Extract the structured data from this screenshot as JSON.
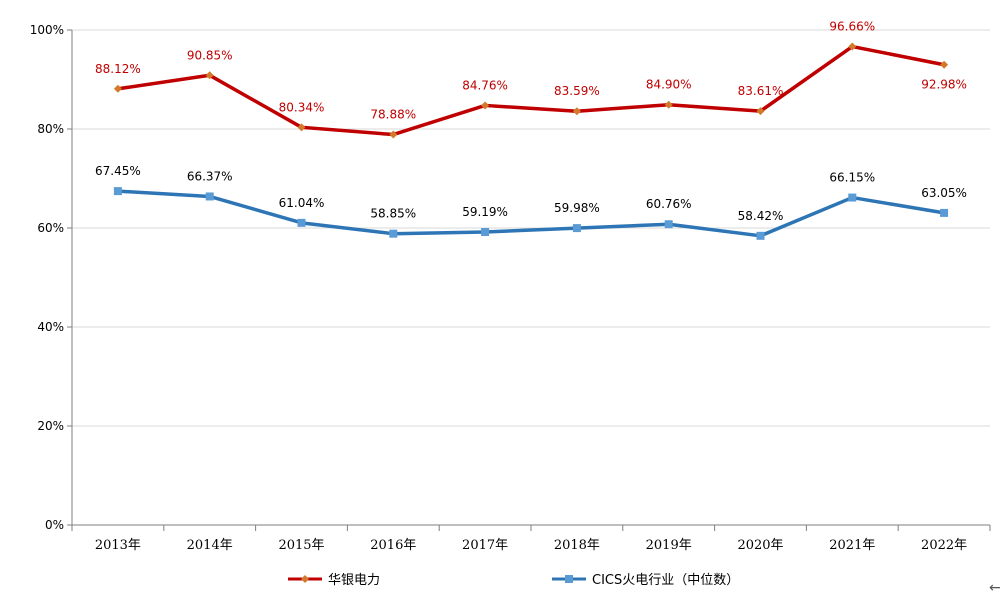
{
  "chart_data": {
    "type": "line",
    "title": "",
    "xlabel": "",
    "ylabel": "",
    "ylim": [
      0,
      100
    ],
    "yticks": [
      "0%",
      "20%",
      "40%",
      "60%",
      "80%",
      "100%"
    ],
    "ytick_values": [
      0,
      20,
      40,
      60,
      80,
      100
    ],
    "grid": true,
    "legend_position": "bottom",
    "categories": [
      "2013年",
      "2014年",
      "2015年",
      "2016年",
      "2017年",
      "2018年",
      "2019年",
      "2020年",
      "2021年",
      "2022年"
    ],
    "series": [
      {
        "name": "华银电力",
        "color": "#c00000",
        "marker_color": "#d27a2a",
        "marker": "diamond",
        "values": [
          88.12,
          90.85,
          80.34,
          78.88,
          84.76,
          83.59,
          84.9,
          83.61,
          96.66,
          92.98
        ],
        "labels": [
          "88.12%",
          "90.85%",
          "80.34%",
          "78.88%",
          "84.76%",
          "83.59%",
          "84.90%",
          "83.61%",
          "96.66%",
          "92.98%"
        ]
      },
      {
        "name": "CICS火电行业（中位数）",
        "color": "#2e75b6",
        "marker_color": "#5b9bd5",
        "marker": "square",
        "values": [
          67.45,
          66.37,
          61.04,
          58.85,
          59.19,
          59.98,
          60.76,
          58.42,
          66.15,
          63.05
        ],
        "labels": [
          "67.45%",
          "66.37%",
          "61.04%",
          "58.85%",
          "59.19%",
          "59.98%",
          "60.76%",
          "58.42%",
          "66.15%",
          "63.05%"
        ]
      }
    ]
  }
}
